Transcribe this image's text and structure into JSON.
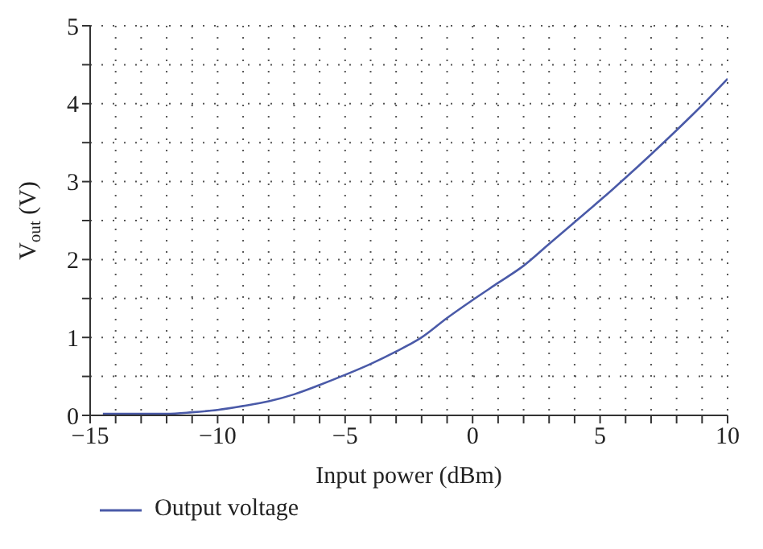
{
  "chart_data": {
    "type": "line",
    "xlabel": "Input power (dBm)",
    "ylabel": "V$_{out}$ (V)",
    "x": [
      -14.5,
      -13,
      -12,
      -11,
      -10,
      -9,
      -8,
      -7,
      -6,
      -5,
      -4,
      -3,
      -2,
      -1,
      0,
      1,
      2,
      3,
      4,
      5,
      6,
      7,
      8,
      9,
      10
    ],
    "series": [
      {
        "name": "Output voltage",
        "color": "#4a5aa8",
        "values": [
          0.02,
          0.02,
          0.02,
          0.04,
          0.07,
          0.12,
          0.18,
          0.27,
          0.39,
          0.52,
          0.66,
          0.82,
          1.0,
          1.25,
          1.48,
          1.7,
          1.92,
          2.2,
          2.48,
          2.76,
          3.05,
          3.35,
          3.66,
          3.98,
          4.32
        ]
      }
    ],
    "xlim": [
      -15,
      10
    ],
    "xticks": [
      -15,
      {
        "value": -14,
        "label": null
      },
      {
        "value": -13,
        "label": null
      },
      {
        "value": -12,
        "label": null
      },
      {
        "value": -11,
        "label": null
      },
      -10,
      {
        "value": -9,
        "label": null
      },
      {
        "value": -8,
        "label": null
      },
      {
        "value": -7,
        "label": null
      },
      {
        "value": -6,
        "label": null
      },
      -5,
      {
        "value": -4,
        "label": null
      },
      {
        "value": -3,
        "label": null
      },
      {
        "value": -2,
        "label": null
      },
      {
        "value": -1,
        "label": null
      },
      0,
      {
        "value": 1,
        "label": null
      },
      {
        "value": 2,
        "label": null
      },
      {
        "value": 3,
        "label": null
      },
      {
        "value": 4,
        "label": null
      },
      5,
      {
        "value": 6,
        "label": null
      },
      {
        "value": 7,
        "label": null
      },
      {
        "value": 8,
        "label": null
      },
      {
        "value": 9,
        "label": null
      },
      10
    ],
    "ylim": [
      0,
      5
    ],
    "yticks": [
      0,
      {
        "value": 0.5,
        "label": null
      },
      1,
      {
        "value": 1.5,
        "label": null
      },
      2,
      {
        "value": 2.5,
        "label": null
      },
      3,
      {
        "value": 3.5,
        "label": null
      },
      4,
      {
        "value": 4.5,
        "label": null
      },
      5
    ],
    "grid": true,
    "legend": "bottom left",
    "marker": "none",
    "line_style": "solid"
  }
}
